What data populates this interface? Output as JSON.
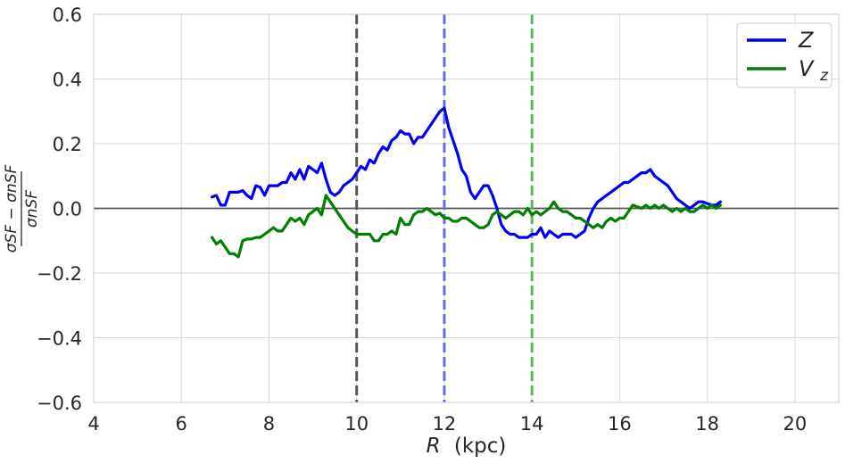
{
  "chart_data": {
    "type": "line",
    "xlabel_var": "R",
    "xlabel_unit": "(kpc)",
    "ylabel_num": "σSF − σnSF",
    "ylabel_den": "σnSF",
    "xlim": [
      4,
      21
    ],
    "ylim": [
      -0.6,
      0.6
    ],
    "xticks": [
      4,
      6,
      8,
      10,
      12,
      14,
      16,
      18,
      20
    ],
    "yticks": [
      -0.6,
      -0.4,
      -0.2,
      0.0,
      0.2,
      0.4,
      0.6
    ],
    "ytick_labels": [
      "−0.6",
      "−0.4",
      "−0.2",
      "0.0",
      "0.2",
      "0.4",
      "0.6"
    ],
    "grid": true,
    "legend_position": "top-right",
    "hline": 0,
    "vlines": [
      {
        "x": 10,
        "color": "#555555"
      },
      {
        "x": 12,
        "color": "#6a6ae0"
      },
      {
        "x": 14,
        "color": "#5db35d"
      }
    ],
    "series": [
      {
        "name": "Z",
        "color": "#0000ee",
        "x": [
          6.7,
          6.8,
          6.9,
          7.0,
          7.1,
          7.2,
          7.3,
          7.4,
          7.5,
          7.6,
          7.7,
          7.8,
          7.9,
          8.0,
          8.1,
          8.2,
          8.3,
          8.4,
          8.5,
          8.6,
          8.7,
          8.8,
          8.9,
          9.0,
          9.1,
          9.2,
          9.3,
          9.4,
          9.5,
          9.6,
          9.7,
          9.8,
          9.9,
          10.0,
          10.1,
          10.2,
          10.3,
          10.4,
          10.5,
          10.6,
          10.7,
          10.8,
          10.9,
          11.0,
          11.1,
          11.2,
          11.3,
          11.4,
          11.5,
          11.6,
          11.7,
          11.8,
          11.9,
          12.0,
          12.1,
          12.2,
          12.3,
          12.4,
          12.5,
          12.6,
          12.7,
          12.8,
          12.9,
          13.0,
          13.1,
          13.2,
          13.3,
          13.4,
          13.5,
          13.6,
          13.7,
          13.8,
          13.9,
          14.0,
          14.1,
          14.2,
          14.3,
          14.4,
          14.5,
          14.6,
          14.7,
          14.8,
          14.9,
          15.0,
          15.1,
          15.2,
          15.3,
          15.4,
          15.5,
          15.6,
          15.7,
          15.8,
          15.9,
          16.0,
          16.1,
          16.2,
          16.3,
          16.4,
          16.5,
          16.6,
          16.7,
          16.8,
          16.9,
          17.0,
          17.1,
          17.2,
          17.3,
          17.4,
          17.5,
          17.6,
          17.7,
          17.8,
          17.9,
          18.0,
          18.1,
          18.2,
          18.3
        ],
        "y": [
          0.035,
          0.04,
          0.01,
          0.01,
          0.05,
          0.05,
          0.05,
          0.055,
          0.04,
          0.03,
          0.07,
          0.065,
          0.04,
          0.07,
          0.07,
          0.07,
          0.08,
          0.08,
          0.11,
          0.09,
          0.12,
          0.09,
          0.13,
          0.12,
          0.11,
          0.14,
          0.09,
          0.05,
          0.04,
          0.05,
          0.07,
          0.08,
          0.09,
          0.11,
          0.13,
          0.12,
          0.15,
          0.14,
          0.17,
          0.19,
          0.18,
          0.21,
          0.22,
          0.24,
          0.23,
          0.23,
          0.2,
          0.22,
          0.22,
          0.24,
          0.26,
          0.28,
          0.3,
          0.31,
          0.25,
          0.21,
          0.17,
          0.12,
          0.1,
          0.05,
          0.03,
          0.05,
          0.07,
          0.07,
          0.04,
          0.0,
          -0.05,
          -0.07,
          -0.08,
          -0.08,
          -0.09,
          -0.09,
          -0.09,
          -0.08,
          -0.08,
          -0.06,
          -0.09,
          -0.07,
          -0.08,
          -0.09,
          -0.08,
          -0.08,
          -0.08,
          -0.09,
          -0.08,
          -0.07,
          -0.03,
          0.0,
          0.02,
          0.03,
          0.04,
          0.05,
          0.06,
          0.07,
          0.08,
          0.08,
          0.09,
          0.1,
          0.11,
          0.11,
          0.12,
          0.1,
          0.09,
          0.08,
          0.07,
          0.05,
          0.03,
          0.02,
          0.01,
          0.0,
          0.01,
          0.02,
          0.02,
          0.015,
          0.01,
          0.01,
          0.02
        ],
        "label": "Z"
      },
      {
        "name": "V_z",
        "color": "#008000",
        "x": [
          6.7,
          6.8,
          6.9,
          7.0,
          7.1,
          7.2,
          7.3,
          7.4,
          7.5,
          7.6,
          7.7,
          7.8,
          7.9,
          8.0,
          8.1,
          8.2,
          8.3,
          8.4,
          8.5,
          8.6,
          8.7,
          8.8,
          8.9,
          9.0,
          9.1,
          9.2,
          9.3,
          9.4,
          9.5,
          9.6,
          9.7,
          9.8,
          9.9,
          10.0,
          10.1,
          10.2,
          10.3,
          10.4,
          10.5,
          10.6,
          10.7,
          10.8,
          10.9,
          11.0,
          11.1,
          11.2,
          11.3,
          11.4,
          11.5,
          11.6,
          11.7,
          11.8,
          11.9,
          12.0,
          12.1,
          12.2,
          12.3,
          12.4,
          12.5,
          12.6,
          12.7,
          12.8,
          12.9,
          13.0,
          13.1,
          13.2,
          13.3,
          13.4,
          13.5,
          13.6,
          13.7,
          13.8,
          13.9,
          14.0,
          14.1,
          14.2,
          14.3,
          14.4,
          14.5,
          14.6,
          14.7,
          14.8,
          14.9,
          15.0,
          15.1,
          15.2,
          15.3,
          15.4,
          15.5,
          15.6,
          15.7,
          15.8,
          15.9,
          16.0,
          16.1,
          16.2,
          16.3,
          16.4,
          16.5,
          16.6,
          16.7,
          16.8,
          16.9,
          17.0,
          17.1,
          17.2,
          17.3,
          17.4,
          17.5,
          17.6,
          17.7,
          17.8,
          17.9,
          18.0,
          18.1,
          18.2,
          18.3
        ],
        "y": [
          -0.09,
          -0.11,
          -0.1,
          -0.12,
          -0.14,
          -0.14,
          -0.15,
          -0.1,
          -0.095,
          -0.095,
          -0.09,
          -0.09,
          -0.08,
          -0.07,
          -0.06,
          -0.07,
          -0.07,
          -0.05,
          -0.03,
          -0.04,
          -0.03,
          -0.05,
          -0.02,
          -0.01,
          0.0,
          -0.02,
          0.04,
          0.02,
          0.0,
          -0.02,
          -0.04,
          -0.06,
          -0.07,
          -0.08,
          -0.08,
          -0.08,
          -0.08,
          -0.1,
          -0.1,
          -0.08,
          -0.08,
          -0.07,
          -0.08,
          -0.03,
          -0.05,
          -0.05,
          -0.02,
          -0.01,
          -0.01,
          0.0,
          -0.01,
          -0.02,
          -0.015,
          -0.03,
          -0.03,
          -0.04,
          -0.04,
          -0.03,
          -0.03,
          -0.04,
          -0.05,
          -0.06,
          -0.06,
          -0.05,
          -0.02,
          -0.01,
          -0.02,
          -0.03,
          -0.02,
          -0.01,
          -0.01,
          -0.02,
          0.0,
          -0.02,
          -0.01,
          -0.02,
          -0.01,
          0.0,
          0.02,
          0.0,
          -0.01,
          -0.01,
          -0.02,
          -0.03,
          -0.03,
          -0.04,
          -0.05,
          -0.06,
          -0.05,
          -0.06,
          -0.04,
          -0.03,
          -0.04,
          -0.03,
          -0.03,
          -0.01,
          0.01,
          0.005,
          0.0,
          0.01,
          0.0,
          0.01,
          0.0,
          0.01,
          0.0,
          -0.01,
          0.0,
          -0.01,
          0.0,
          -0.01,
          -0.01,
          0.0,
          0.01,
          0.0,
          0.01,
          0.0,
          0.01
        ],
        "label_main": "V",
        "label_sub": "z"
      }
    ]
  }
}
